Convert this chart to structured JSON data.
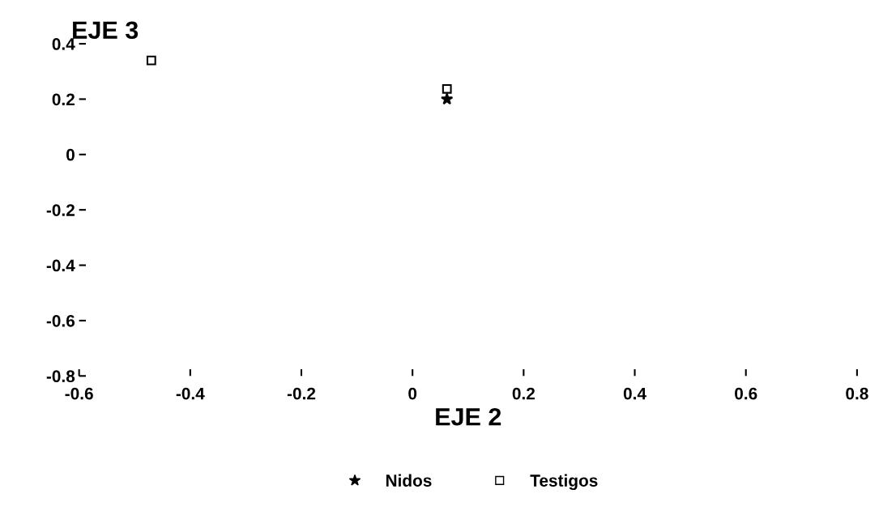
{
  "chart_data": {
    "type": "scatter",
    "xlabel": "EJE 2",
    "ylabel": "EJE 3",
    "xlim": [
      -0.6,
      0.8
    ],
    "xticks": [
      -0.6,
      -0.4,
      -0.2,
      0,
      0.2,
      0.4,
      0.6,
      0.8
    ],
    "ylim": [
      -0.8,
      0.4
    ],
    "yticks": [
      -0.8,
      -0.6,
      -0.4,
      -0.2,
      0,
      0.2,
      0.4
    ],
    "grid": false,
    "legend": "bottom",
    "x": [
      -0.47,
      0.062
    ],
    "series": [
      {
        "name": "Nidos",
        "color": "#000000",
        "marker": "star",
        "values": [
          null,
          0.2
        ]
      },
      {
        "name": "Testigos",
        "color": "#000000",
        "marker": "square",
        "values": [
          0.34,
          0.237
        ]
      }
    ]
  }
}
